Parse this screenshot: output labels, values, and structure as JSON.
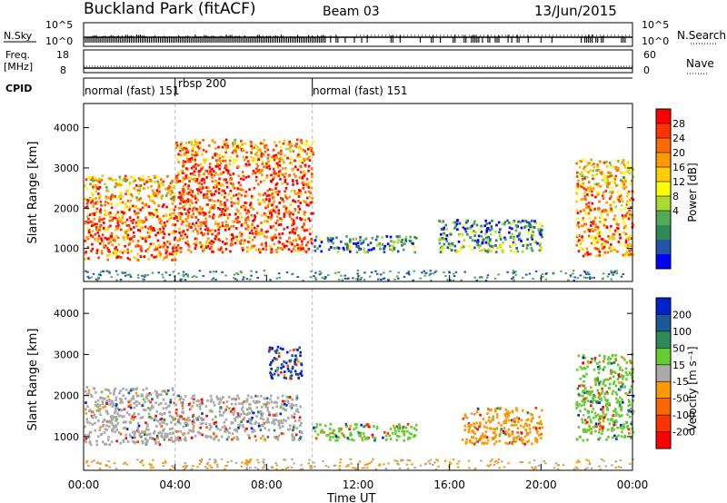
{
  "header": {
    "station": "Buckland Park (fitACF)",
    "beam": "Beam 03",
    "date": "13/Jun/2015"
  },
  "left_labels": {
    "nsky": "N.Sky",
    "freq": "Freq.",
    "freq_unit": "[MHz]",
    "cpid": "CPID"
  },
  "right_labels": {
    "nsearch": "N.Search",
    "nave": "Nave"
  },
  "noise_axis": {
    "left_ticks": [
      "10^5",
      "10^0"
    ],
    "right_ticks": [
      "10^5",
      "10^0"
    ]
  },
  "freq_axis": {
    "left_ticks": [
      "18",
      "8"
    ],
    "right_ticks": [
      "60",
      "0"
    ]
  },
  "cpid_segments": [
    {
      "label": "normal (fast) 151",
      "start_hour": 0.0,
      "end_hour": 4.0
    },
    {
      "label": "rbsp 200",
      "start_hour": 4.0,
      "end_hour": 10.0
    },
    {
      "label": "normal (fast) 151",
      "start_hour": 10.0,
      "end_hour": 24.0
    }
  ],
  "time_axis": {
    "label": "Time UT",
    "ticks": [
      "00:00",
      "04:00",
      "08:00",
      "12:00",
      "16:00",
      "20:00",
      "00:00"
    ]
  },
  "chart_data": [
    {
      "type": "heatmap",
      "panel": "power",
      "ylabel": "Slant Range [km]",
      "xlim_hours": [
        0,
        24
      ],
      "ylim_km": [
        180,
        4600
      ],
      "yticks": [
        "1000",
        "2000",
        "3000",
        "4000"
      ],
      "colorbar": {
        "label": "Power [dB]",
        "ticks": [
          "28",
          "24",
          "20",
          "16",
          "12",
          "8",
          "4"
        ],
        "colors": [
          "#ff0000",
          "#ff3300",
          "#ff6a00",
          "#ff9900",
          "#ffcc00",
          "#ffff00",
          "#aadd33",
          "#55aa55",
          "#2e8b57",
          "#2255aa",
          "#0000ff"
        ]
      },
      "echo_regions": [
        {
          "from_hour": 0.0,
          "to_hour": 4.0,
          "range_km": [
            700,
            2800
          ],
          "power_db": 24
        },
        {
          "from_hour": 4.0,
          "to_hour": 10.0,
          "range_km": [
            900,
            3700
          ],
          "power_db": 26
        },
        {
          "from_hour": 10.0,
          "to_hour": 14.5,
          "range_km": [
            900,
            1300
          ],
          "power_db": 10
        },
        {
          "from_hour": 15.5,
          "to_hour": 20.0,
          "range_km": [
            900,
            1700
          ],
          "power_db": 10
        },
        {
          "from_hour": 21.5,
          "to_hour": 24.0,
          "range_km": [
            800,
            3200
          ],
          "power_db": 22
        }
      ]
    },
    {
      "type": "heatmap",
      "panel": "velocity",
      "ylabel": "Slant Range [km]",
      "xlim_hours": [
        0,
        24
      ],
      "ylim_km": [
        180,
        4600
      ],
      "yticks": [
        "1000",
        "2000",
        "3000",
        "4000"
      ],
      "colorbar": {
        "label": "Velocity [m s⁻¹]",
        "ticks": [
          "200",
          "100",
          "50",
          "15",
          "-15",
          "-50",
          "-100",
          "-200"
        ],
        "colors": [
          "#0022cc",
          "#1a5a9a",
          "#2e8b57",
          "#66cc33",
          "#aaaaaa",
          "#ff9900",
          "#ff6600",
          "#ff3300",
          "#ff0000"
        ]
      },
      "echo_regions": [
        {
          "from_hour": 0.0,
          "to_hour": 4.0,
          "range_km": [
            800,
            2200
          ],
          "velocity_ms": 0
        },
        {
          "from_hour": 4.0,
          "to_hour": 9.5,
          "range_km": [
            900,
            2000
          ],
          "velocity_ms": 0
        },
        {
          "from_hour": 8.0,
          "to_hour": 9.5,
          "range_km": [
            2400,
            3200
          ],
          "velocity_ms": 150
        },
        {
          "from_hour": 10.0,
          "to_hour": 14.5,
          "range_km": [
            900,
            1300
          ],
          "velocity_ms": 30
        },
        {
          "from_hour": 16.5,
          "to_hour": 20.0,
          "range_km": [
            800,
            1700
          ],
          "velocity_ms": -40
        },
        {
          "from_hour": 21.5,
          "to_hour": 24.0,
          "range_km": [
            900,
            3000
          ],
          "velocity_ms": 30
        }
      ]
    }
  ]
}
